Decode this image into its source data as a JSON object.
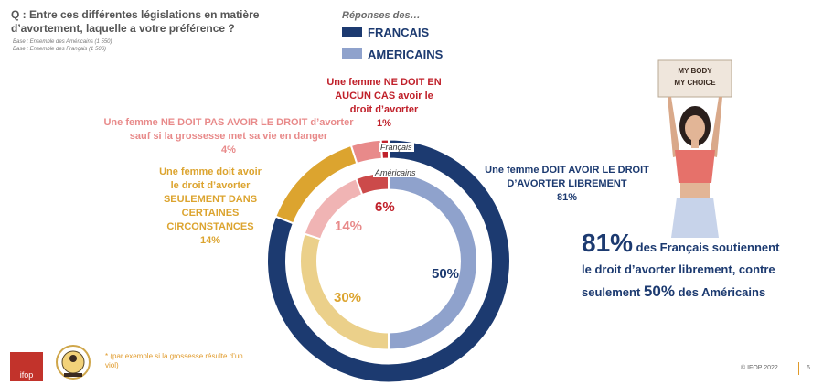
{
  "question": "Q : Entre ces différentes législations en matière d’avortement, laquelle a votre préférence ?",
  "bases": [
    "Base : Ensemble des Américains (1 550)",
    "Base : Ensemble des Français (1 506)"
  ],
  "legend": {
    "title": "Réponses des…",
    "items": [
      {
        "label": "FRANCAIS",
        "color": "#1c3a70"
      },
      {
        "label": "AMERICAINS",
        "color": "#6f87bd"
      }
    ]
  },
  "ring_labels": {
    "outer": "Français",
    "inner": "Américains"
  },
  "chart_data": {
    "type": "pie",
    "series": [
      {
        "name": "Français",
        "values": [
          81,
          14,
          4,
          1
        ]
      },
      {
        "name": "Américains",
        "values": [
          50,
          30,
          14,
          6
        ]
      }
    ],
    "categories": [
      "Une femme DOIT AVOIR LE DROIT D’AVORTER LIBREMENT",
      "Une femme doit avoir le droit d’avorter SEULEMENT DANS CERTAINES CIRCONSTANCES",
      "Une femme NE DOIT PAS AVOIR LE DROIT d’avorter sauf si la grossesse met sa vie en danger",
      "Une femme NE DOIT EN AUCUN CAS avoir le droit d’avorter"
    ],
    "colors": [
      "#1c3a70",
      "#dca42f",
      "#e88a8a",
      "#c0202a"
    ],
    "inner_colors": [
      "#8fa2cc",
      "#ebd08a",
      "#f0b4b4",
      "#cc4a4a"
    ]
  },
  "category_labels": [
    {
      "lines": [
        "Une femme DOIT AVOIR LE DROIT",
        "D’AVORTER LIBREMENT"
      ],
      "pct": "81%",
      "color": "#1c3a70"
    },
    {
      "lines": [
        "Une femme doit avoir",
        "le droit d’avorter",
        "SEULEMENT DANS",
        "CERTAINES",
        "CIRCONSTANCES"
      ],
      "pct": "14%",
      "color": "#dca42f"
    },
    {
      "lines": [
        "Une femme NE DOIT PAS AVOIR LE DROIT d’avorter",
        "sauf si la grossesse met sa vie en danger"
      ],
      "pct": "4%",
      "color": "#e88a8a"
    },
    {
      "lines": [
        "Une femme NE DOIT EN",
        "AUCUN CAS avoir le",
        "droit d’avorter"
      ],
      "pct": "1%",
      "color": "#c0202a"
    }
  ],
  "inner_pcts": [
    {
      "text": "50%",
      "color": "#1c3a70"
    },
    {
      "text": "30%",
      "color": "#dca42f"
    },
    {
      "text": "14%",
      "color": "#e88a8a"
    },
    {
      "text": "6%",
      "color": "#c0202a"
    }
  ],
  "headline": {
    "big1": "81%",
    "text1": " des Français soutiennent",
    "text2": "le droit d’avorter librement, contre",
    "text3": "seulement ",
    "big2": "50%",
    "text4": " des Américains"
  },
  "sign_text": [
    "MY BODY",
    "MY CHOICE"
  ],
  "footnote": "* (par exemple si la grossesse résulte d’un viol)",
  "logo": "ifop",
  "copyright": "© IFOP 2022",
  "page_number": "6"
}
